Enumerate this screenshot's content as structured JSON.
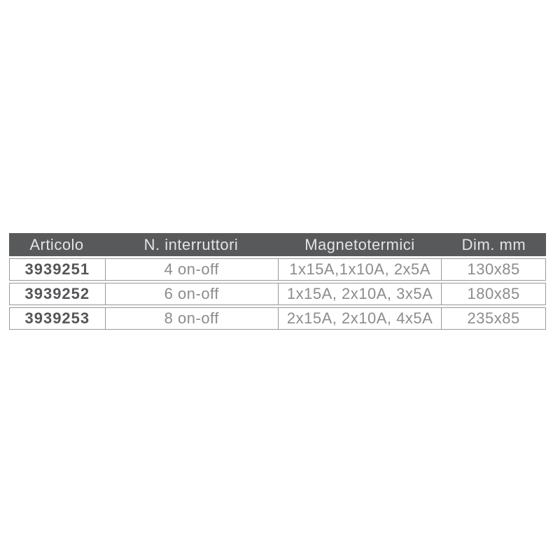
{
  "table": {
    "columns": [
      {
        "label": "Articolo"
      },
      {
        "label": "N. interruttori"
      },
      {
        "label": "Magnetotermici"
      },
      {
        "label": "Dim. mm"
      }
    ],
    "rows": [
      {
        "articolo": "3939251",
        "interruttori": "4 on-off",
        "magnetotermici": "1x15A,1x10A, 2x5A",
        "dim": "130x85"
      },
      {
        "articolo": "3939252",
        "interruttori": "6 on-off",
        "magnetotermici": "1x15A, 2x10A, 3x5A",
        "dim": "180x85"
      },
      {
        "articolo": "3939253",
        "interruttori": "8 on-off",
        "magnetotermici": "2x15A, 2x10A, 4x5A",
        "dim": "235x85"
      }
    ],
    "colors": {
      "header_bg": "#58595b",
      "header_text": "#e3e4e5",
      "body_text": "#8a8c8e",
      "article_text": "#555659",
      "border": "#97989a",
      "page_bg": "#ffffff"
    }
  }
}
